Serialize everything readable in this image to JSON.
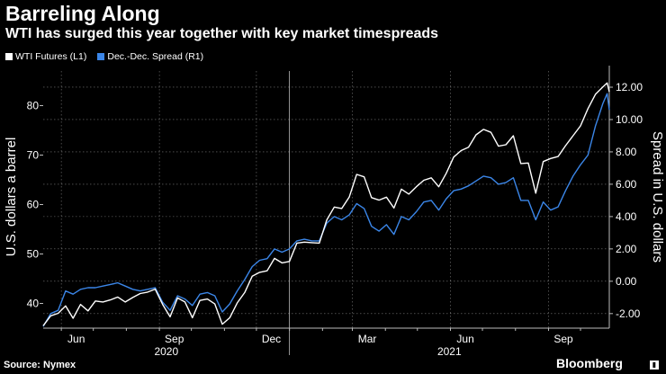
{
  "header": {
    "title": "Barreling Along",
    "subtitle": "WTI has surged this year together with key market timespreads"
  },
  "footer": {
    "source": "Source: Nymex",
    "brand": "Bloomberg"
  },
  "colors": {
    "wti": "#ffffff",
    "spread": "#3b86e8",
    "grid": "#7a7a7a"
  },
  "chart_data": {
    "type": "line",
    "legend_placement": "top-left",
    "grid": true,
    "x_ticks": [
      "Jun",
      "Sep",
      "Dec",
      "Mar",
      "Jun",
      "Sep"
    ],
    "x_year_labels": [
      "2020",
      "2021"
    ],
    "x_range": [
      "2020-05-15",
      "2021-10-28"
    ],
    "left_axis": {
      "label": "U.S. dollars a barrel",
      "range": [
        35,
        87
      ],
      "ticks": [
        40,
        50,
        60,
        70,
        80
      ]
    },
    "right_axis": {
      "label": "Spread in U.S. dollars",
      "range": [
        -2.9,
        13.0
      ],
      "ticks": [
        "12.00",
        "10.00",
        "8.00",
        "6.00",
        "4.00",
        "2.00",
        "0.00",
        "-2.00"
      ]
    },
    "series": [
      {
        "name": "WTI Futures (L1)",
        "axis": "left",
        "points": [
          [
            "2020-05-15",
            35.5
          ],
          [
            "2020-05-22",
            37.5
          ],
          [
            "2020-05-29",
            38.0
          ],
          [
            "2020-06-05",
            39.5
          ],
          [
            "2020-06-12",
            37.0
          ],
          [
            "2020-06-19",
            39.8
          ],
          [
            "2020-06-26",
            38.5
          ],
          [
            "2020-07-03",
            40.5
          ],
          [
            "2020-07-10",
            40.3
          ],
          [
            "2020-07-17",
            40.7
          ],
          [
            "2020-07-24",
            41.3
          ],
          [
            "2020-07-31",
            40.3
          ],
          [
            "2020-08-07",
            41.2
          ],
          [
            "2020-08-14",
            42.0
          ],
          [
            "2020-08-21",
            42.3
          ],
          [
            "2020-08-28",
            42.9
          ],
          [
            "2020-09-04",
            39.8
          ],
          [
            "2020-09-11",
            37.3
          ],
          [
            "2020-09-18",
            41.1
          ],
          [
            "2020-09-25",
            40.3
          ],
          [
            "2020-10-02",
            37.1
          ],
          [
            "2020-10-09",
            40.6
          ],
          [
            "2020-10-16",
            40.9
          ],
          [
            "2020-10-23",
            39.9
          ],
          [
            "2020-10-30",
            35.8
          ],
          [
            "2020-11-06",
            37.1
          ],
          [
            "2020-11-13",
            40.1
          ],
          [
            "2020-11-20",
            42.2
          ],
          [
            "2020-11-27",
            45.5
          ],
          [
            "2020-12-04",
            46.3
          ],
          [
            "2020-12-11",
            46.6
          ],
          [
            "2020-12-18",
            49.1
          ],
          [
            "2020-12-25",
            48.2
          ],
          [
            "2021-01-01",
            48.5
          ],
          [
            "2021-01-08",
            52.2
          ],
          [
            "2021-01-15",
            52.4
          ],
          [
            "2021-01-22",
            52.3
          ],
          [
            "2021-01-29",
            52.2
          ],
          [
            "2021-02-05",
            56.9
          ],
          [
            "2021-02-12",
            59.5
          ],
          [
            "2021-02-19",
            59.2
          ],
          [
            "2021-02-26",
            61.5
          ],
          [
            "2021-03-05",
            66.1
          ],
          [
            "2021-03-12",
            65.6
          ],
          [
            "2021-03-19",
            61.4
          ],
          [
            "2021-03-26",
            60.9
          ],
          [
            "2021-04-02",
            61.5
          ],
          [
            "2021-04-09",
            59.3
          ],
          [
            "2021-04-16",
            63.1
          ],
          [
            "2021-04-23",
            62.1
          ],
          [
            "2021-04-30",
            63.6
          ],
          [
            "2021-05-07",
            64.9
          ],
          [
            "2021-05-14",
            65.4
          ],
          [
            "2021-05-21",
            63.6
          ],
          [
            "2021-05-28",
            66.3
          ],
          [
            "2021-06-04",
            69.6
          ],
          [
            "2021-06-11",
            70.9
          ],
          [
            "2021-06-18",
            71.6
          ],
          [
            "2021-06-25",
            74.1
          ],
          [
            "2021-07-02",
            75.2
          ],
          [
            "2021-07-09",
            74.6
          ],
          [
            "2021-07-16",
            71.8
          ],
          [
            "2021-07-23",
            72.1
          ],
          [
            "2021-07-30",
            73.9
          ],
          [
            "2021-08-06",
            68.3
          ],
          [
            "2021-08-13",
            68.4
          ],
          [
            "2021-08-20",
            62.3
          ],
          [
            "2021-08-27",
            68.7
          ],
          [
            "2021-09-03",
            69.3
          ],
          [
            "2021-09-10",
            69.7
          ],
          [
            "2021-09-17",
            71.9
          ],
          [
            "2021-09-24",
            73.9
          ],
          [
            "2021-10-01",
            75.9
          ],
          [
            "2021-10-08",
            79.4
          ],
          [
            "2021-10-15",
            82.3
          ],
          [
            "2021-10-22",
            83.8
          ],
          [
            "2021-10-26",
            84.6
          ],
          [
            "2021-10-28",
            82.8
          ]
        ]
      },
      {
        "name": "Dec.-Dec. Spread (R1)",
        "axis": "right",
        "points": [
          [
            "2020-05-15",
            -2.8
          ],
          [
            "2020-05-22",
            -2.0
          ],
          [
            "2020-05-29",
            -1.8
          ],
          [
            "2020-06-05",
            -0.6
          ],
          [
            "2020-06-12",
            -0.8
          ],
          [
            "2020-06-19",
            -0.5
          ],
          [
            "2020-06-26",
            -0.4
          ],
          [
            "2020-07-03",
            -0.4
          ],
          [
            "2020-07-10",
            -0.3
          ],
          [
            "2020-07-17",
            -0.2
          ],
          [
            "2020-07-24",
            -0.1
          ],
          [
            "2020-07-31",
            -0.3
          ],
          [
            "2020-08-07",
            -0.5
          ],
          [
            "2020-08-14",
            -0.6
          ],
          [
            "2020-08-21",
            -0.5
          ],
          [
            "2020-08-28",
            -0.4
          ],
          [
            "2020-09-04",
            -1.3
          ],
          [
            "2020-09-11",
            -1.8
          ],
          [
            "2020-09-18",
            -0.9
          ],
          [
            "2020-09-25",
            -1.1
          ],
          [
            "2020-10-02",
            -1.5
          ],
          [
            "2020-10-09",
            -0.8
          ],
          [
            "2020-10-16",
            -0.7
          ],
          [
            "2020-10-23",
            -0.9
          ],
          [
            "2020-10-30",
            -1.9
          ],
          [
            "2020-11-06",
            -1.4
          ],
          [
            "2020-11-13",
            -0.6
          ],
          [
            "2020-11-20",
            0.1
          ],
          [
            "2020-11-27",
            0.9
          ],
          [
            "2020-12-04",
            1.3
          ],
          [
            "2020-12-11",
            1.4
          ],
          [
            "2020-12-18",
            2.0
          ],
          [
            "2020-12-25",
            1.8
          ],
          [
            "2021-01-01",
            2.0
          ],
          [
            "2021-01-08",
            2.5
          ],
          [
            "2021-01-15",
            2.6
          ],
          [
            "2021-01-22",
            2.5
          ],
          [
            "2021-01-29",
            2.5
          ],
          [
            "2021-02-05",
            3.6
          ],
          [
            "2021-02-12",
            4.0
          ],
          [
            "2021-02-19",
            3.8
          ],
          [
            "2021-02-26",
            4.1
          ],
          [
            "2021-03-05",
            4.8
          ],
          [
            "2021-03-12",
            4.5
          ],
          [
            "2021-03-19",
            3.4
          ],
          [
            "2021-03-26",
            3.1
          ],
          [
            "2021-04-02",
            3.5
          ],
          [
            "2021-04-09",
            2.9
          ],
          [
            "2021-04-16",
            4.0
          ],
          [
            "2021-04-23",
            3.8
          ],
          [
            "2021-04-30",
            4.3
          ],
          [
            "2021-05-07",
            4.9
          ],
          [
            "2021-05-14",
            5.0
          ],
          [
            "2021-05-21",
            4.4
          ],
          [
            "2021-05-28",
            5.1
          ],
          [
            "2021-06-04",
            5.6
          ],
          [
            "2021-06-11",
            5.7
          ],
          [
            "2021-06-18",
            5.9
          ],
          [
            "2021-06-25",
            6.2
          ],
          [
            "2021-07-02",
            6.5
          ],
          [
            "2021-07-09",
            6.4
          ],
          [
            "2021-07-16",
            6.0
          ],
          [
            "2021-07-23",
            6.1
          ],
          [
            "2021-07-30",
            6.4
          ],
          [
            "2021-08-06",
            5.0
          ],
          [
            "2021-08-13",
            5.0
          ],
          [
            "2021-08-20",
            3.8
          ],
          [
            "2021-08-27",
            4.9
          ],
          [
            "2021-09-03",
            4.4
          ],
          [
            "2021-09-10",
            4.6
          ],
          [
            "2021-09-17",
            5.6
          ],
          [
            "2021-09-24",
            6.5
          ],
          [
            "2021-10-01",
            7.2
          ],
          [
            "2021-10-08",
            7.8
          ],
          [
            "2021-10-15",
            9.6
          ],
          [
            "2021-10-22",
            11.0
          ],
          [
            "2021-10-26",
            11.6
          ],
          [
            "2021-10-28",
            10.6
          ]
        ]
      }
    ]
  }
}
